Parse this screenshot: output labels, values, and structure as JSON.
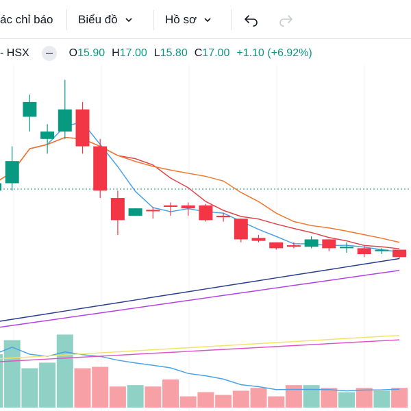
{
  "toolbar": {
    "indicators_label": "ác chỉ báo",
    "chart_type_label": "Biểu đồ",
    "profile_label": "Hồ sơ"
  },
  "legend": {
    "symbol": "- HSX",
    "open_key": "O",
    "open": "15.90",
    "high_key": "H",
    "high": "17.00",
    "low_key": "L",
    "low": "15.80",
    "close_key": "C",
    "close": "17.00",
    "change": "+1.10 (+6.92%)"
  },
  "colors": {
    "up": "#089981",
    "up_volume": "#8fd1c4",
    "down": "#f23645",
    "down_volume": "#f7a1a7",
    "ma_light_blue": "#4aa3e8",
    "ma_orange": "#f0782d",
    "ma_red": "#e0444c",
    "ma_navy": "#2a3d8f",
    "ma_purple": "#b341e8",
    "ma_yellow": "#f5e26a",
    "ma_magenta": "#e052c8"
  },
  "chart_data": {
    "type": "candlestick",
    "candles": [
      {
        "o": 15.95,
        "h": 16.05,
        "l": 15.9,
        "c": 16.0
      },
      {
        "o": 16.0,
        "h": 16.25,
        "l": 15.95,
        "c": 16.15
      },
      {
        "o": 16.45,
        "h": 16.6,
        "l": 16.35,
        "c": 16.55
      },
      {
        "o": 16.3,
        "h": 16.4,
        "l": 16.2,
        "c": 16.35
      },
      {
        "o": 16.35,
        "h": 16.7,
        "l": 16.3,
        "c": 16.5
      },
      {
        "o": 16.5,
        "h": 16.55,
        "l": 16.2,
        "c": 16.25
      },
      {
        "o": 16.25,
        "h": 16.3,
        "l": 15.9,
        "c": 15.95
      },
      {
        "o": 15.9,
        "h": 15.95,
        "l": 15.65,
        "c": 15.75
      },
      {
        "o": 15.78,
        "h": 15.83,
        "l": 15.78,
        "c": 15.83
      },
      {
        "o": 15.82,
        "h": 15.84,
        "l": 15.76,
        "c": 15.81
      },
      {
        "o": 15.85,
        "h": 15.87,
        "l": 15.78,
        "c": 15.84
      },
      {
        "o": 15.85,
        "h": 15.87,
        "l": 15.78,
        "c": 15.83
      },
      {
        "o": 15.85,
        "h": 15.86,
        "l": 15.74,
        "c": 15.75
      },
      {
        "o": 15.78,
        "h": 15.8,
        "l": 15.74,
        "c": 15.77
      },
      {
        "o": 15.76,
        "h": 15.76,
        "l": 15.6,
        "c": 15.62
      },
      {
        "o": 15.63,
        "h": 15.65,
        "l": 15.6,
        "c": 15.61
      },
      {
        "o": 15.6,
        "h": 15.6,
        "l": 15.55,
        "c": 15.56
      },
      {
        "o": 15.58,
        "h": 15.6,
        "l": 15.56,
        "c": 15.57
      },
      {
        "o": 15.57,
        "h": 15.64,
        "l": 15.56,
        "c": 15.62
      },
      {
        "o": 15.62,
        "h": 15.62,
        "l": 15.54,
        "c": 15.56
      },
      {
        "o": 15.56,
        "h": 15.6,
        "l": 15.53,
        "c": 15.57
      },
      {
        "o": 15.56,
        "h": 15.58,
        "l": 15.5,
        "c": 15.52
      },
      {
        "o": 15.54,
        "h": 15.56,
        "l": 15.52,
        "c": 15.55
      },
      {
        "o": 15.55,
        "h": 15.55,
        "l": 15.49,
        "c": 15.5
      }
    ],
    "volume": [
      38,
      48,
      28,
      32,
      52,
      28,
      29,
      15,
      16,
      15,
      20,
      8,
      11,
      9,
      12,
      14,
      8,
      16,
      16,
      14,
      11,
      14,
      12,
      14
    ]
  }
}
